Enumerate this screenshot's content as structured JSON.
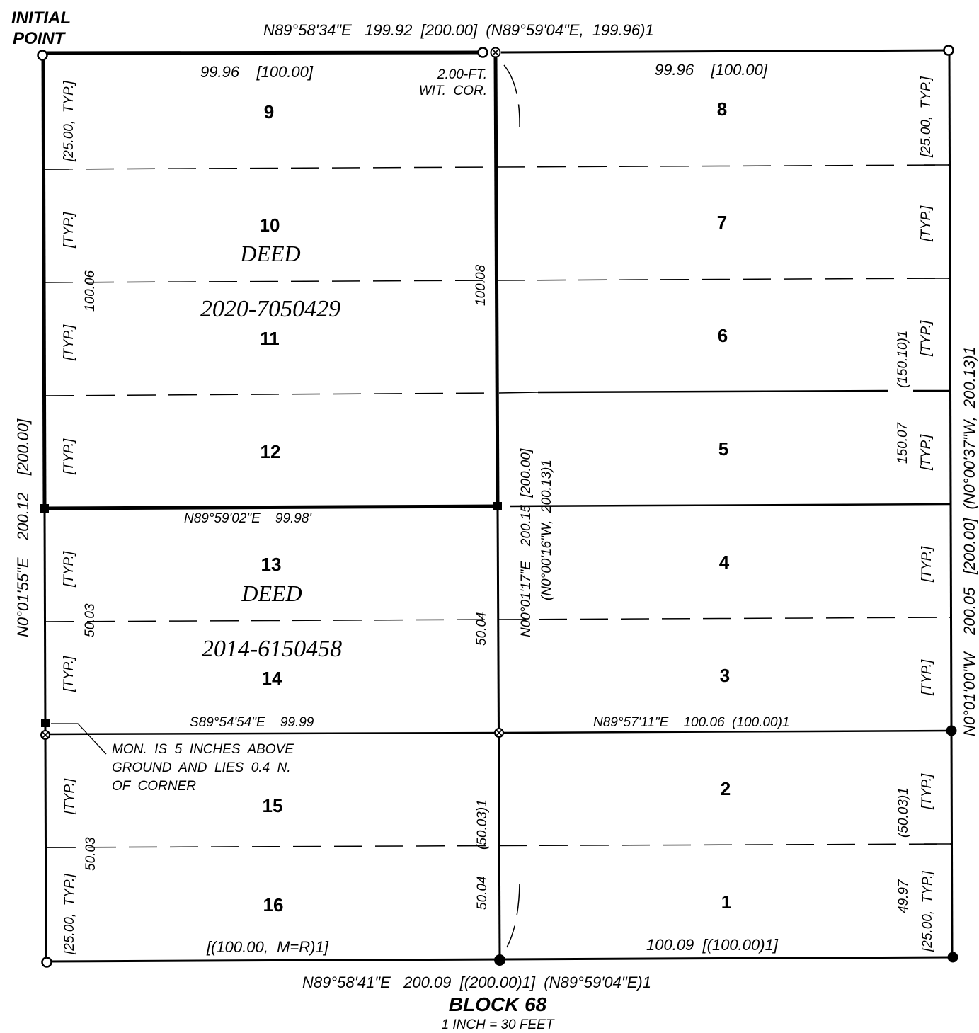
{
  "title_block": {
    "initial_point_line1": "INITIAL",
    "initial_point_line2": "POINT",
    "block_title": "BLOCK 68",
    "scale": "1 INCH = 30 FEET"
  },
  "bearings": {
    "north": "N89°58'34\"E   199.92  [200.00]  (N89°59'04\"E,  199.96)1",
    "south": "N89°58'41\"E   200.09  [(200.00)1]  (N89°59'04\"E)1",
    "middle_top": "N89°59'02\"E    99.98'",
    "middle_bottom_west": "S89°54'54\"E    99.99",
    "middle_bottom_east": "N89°57'11\"E    100.06  (100.00)1",
    "west": "N0°01'55\"E    200.12    [200.00]",
    "center": "N00°01'17\"E    200.15  [200.00]",
    "center_record": "(N0°00'16\"W,  200.13)1",
    "east": "N0°01'00\"W    200.05   [200.00]  (N0°00'37\"W,  200.13)1"
  },
  "dimensions": {
    "lot9_top": "99.96    [100.00]",
    "lot8_top": "99.96    [100.00]",
    "lot16_bottom": "[(100.00,  M=R)1]",
    "lot1_bottom": "100.09  [(100.00)1]",
    "west_upper": "100.06",
    "west_mid": "50.03",
    "west_low": "50.03",
    "center_upper": "100.08",
    "center_mid": "50.04",
    "center_low": "50.04",
    "center_low_rec": "(50.03)1",
    "east_mid": "150.07",
    "east_mid_rec": "(150.10)1",
    "east_low": "49.97",
    "east_low_rec": "(50.03)1",
    "typ": "[TYP.]",
    "typ25": "[25.00,  TYP.]"
  },
  "notes": {
    "witness_line1": "2.00-FT.",
    "witness_line2": "WIT.  COR.",
    "monument_line1": "MON.  IS  5  INCHES  ABOVE",
    "monument_line2": "GROUND  AND  LIES  0.4  N.",
    "monument_line3": "OF  CORNER"
  },
  "deeds": [
    {
      "label": "DEED",
      "number": "2020-7050429"
    },
    {
      "label": "DEED",
      "number": "2014-6150458"
    }
  ],
  "lots": [
    "1",
    "2",
    "3",
    "4",
    "5",
    "6",
    "7",
    "8",
    "9",
    "10",
    "11",
    "12",
    "13",
    "14",
    "15",
    "16"
  ]
}
